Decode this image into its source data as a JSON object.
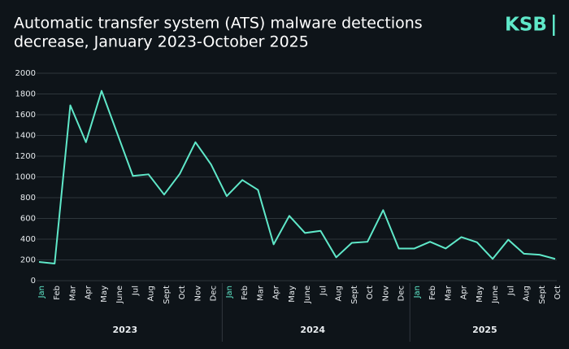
{
  "chart_data": {
    "type": "line",
    "title": [
      "Automatic transfer system (ATS) malware detections",
      "decrease, January 2023-October 2025"
    ],
    "logo": "KSB",
    "categories": [
      "Jan",
      "Feb",
      "Mar",
      "Apr",
      "May",
      "June",
      "Jul",
      "Aug",
      "Sept",
      "Oct",
      "Nov",
      "Dec",
      "Jan",
      "Feb",
      "Mar",
      "Apr",
      "May",
      "June",
      "Jul",
      "Aug",
      "Sept",
      "Oct",
      "Nov",
      "Dec",
      "Jan",
      "Feb",
      "Mar",
      "Apr",
      "May",
      "June",
      "Jul",
      "Aug",
      "Sept",
      "Oct"
    ],
    "groups": [
      "2023",
      "2024",
      "2025"
    ],
    "series": [
      {
        "color": "#5fe8c9",
        "values": [
          180,
          165,
          1690,
          1335,
          1830,
          1420,
          1010,
          1025,
          830,
          1030,
          1335,
          1120,
          815,
          970,
          875,
          350,
          625,
          460,
          480,
          225,
          365,
          375,
          680,
          310,
          310,
          375,
          310,
          420,
          370,
          210,
          395,
          260,
          250,
          210
        ]
      }
    ],
    "highlight_color": "#5fe8c9",
    "ylim": [
      0,
      2000
    ],
    "yticks": [
      0,
      200,
      400,
      600,
      800,
      1000,
      1200,
      1400,
      1600,
      1800,
      2000
    ],
    "grid": true
  }
}
